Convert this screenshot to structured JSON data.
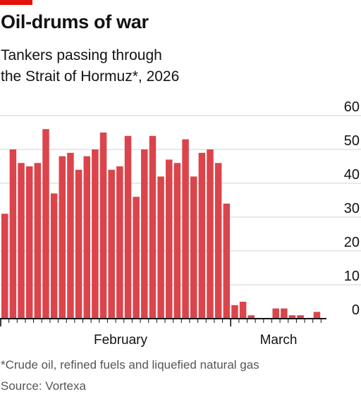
{
  "header": {
    "title": "Oil-drums of war",
    "subtitle_line1": "Tankers passing through",
    "subtitle_line2": "the Strait of Hormuz*, 2026"
  },
  "footer": {
    "footnote": "*Crude oil, refined fuels and liquefied natural gas",
    "source": "Source: Vortexa"
  },
  "colors": {
    "accent": "#e3120b",
    "bar": "#db444b",
    "grid": "#d0d0d0",
    "axis": "#121212"
  },
  "chart_data": {
    "type": "bar",
    "title": "Oil-drums of war",
    "subtitle": "Tankers passing through the Strait of Hormuz*, 2026",
    "xlabel": "",
    "ylabel": "",
    "ylim": [
      0,
      60
    ],
    "yticks": [
      0,
      10,
      20,
      30,
      40,
      50,
      60
    ],
    "x_tick_labels": [
      "February",
      "March"
    ],
    "grid": true,
    "y_axis_side": "right",
    "values": [
      31,
      50,
      46,
      45,
      46,
      56,
      37,
      48,
      49,
      44,
      48,
      50,
      55,
      44,
      45,
      54,
      36,
      50,
      54,
      42,
      47,
      46,
      53,
      42,
      49,
      50,
      46,
      34,
      4,
      5,
      1,
      0,
      0,
      3,
      3,
      1,
      1,
      0,
      2
    ]
  }
}
